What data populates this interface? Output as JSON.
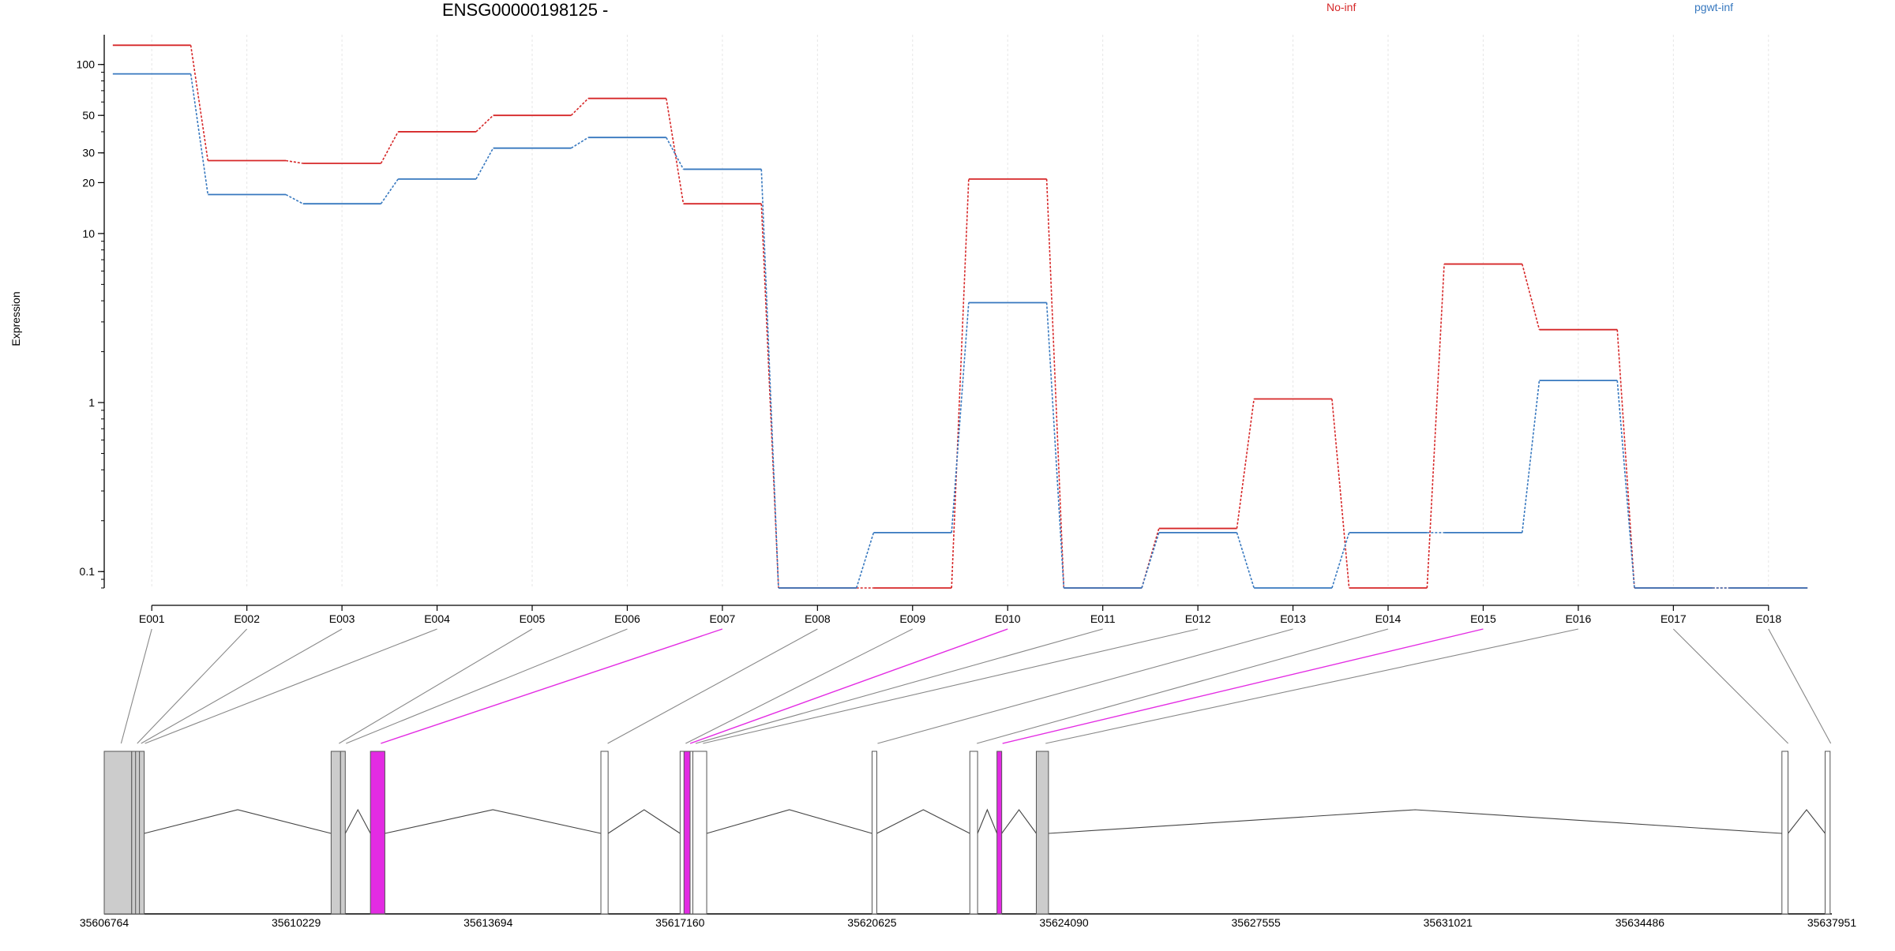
{
  "chart_data": {
    "type": "line",
    "title": "ENSG00000198125 -",
    "ylabel": "Expression",
    "yscale": "log",
    "ylim": [
      0.08,
      150
    ],
    "yticks": [
      0.1,
      1,
      10,
      20,
      30,
      50,
      100
    ],
    "ytick_labels": [
      "0.1",
      "1",
      "10",
      "20",
      "30",
      "50",
      "100"
    ],
    "categories": [
      "E001",
      "E002",
      "E003",
      "E004",
      "E005",
      "E006",
      "E007",
      "E008",
      "E009",
      "E010",
      "E011",
      "E012",
      "E013",
      "E014",
      "E015",
      "E016",
      "E017",
      "E018"
    ],
    "legend_position": "top",
    "grid": true,
    "series": [
      {
        "name": "No-inf",
        "color": "#d62728",
        "values": [
          130,
          27,
          26,
          40,
          50,
          63,
          15,
          0.08,
          0.08,
          21,
          0.08,
          0.18,
          1.05,
          0.08,
          6.6,
          2.7,
          0.08,
          0.08
        ]
      },
      {
        "name": "pgwt-inf",
        "color": "#3778bf",
        "values": [
          88,
          17,
          15,
          21,
          32,
          37,
          24,
          0.08,
          0.17,
          3.9,
          0.08,
          0.17,
          0.08,
          0.17,
          0.17,
          1.35,
          0.08,
          0.08
        ]
      }
    ],
    "highlight_color": "#e32be3",
    "highlighted_exons": [
      "E007",
      "E010",
      "E015"
    ],
    "gene_model": {
      "genomic_axis_ticks": [
        "35606764",
        "35610229",
        "35613694",
        "35617160",
        "35620625",
        "35624090",
        "35627555",
        "35631021",
        "35634486",
        "35637951"
      ],
      "genomic_range": [
        35606764,
        35637951
      ],
      "exons": [
        {
          "id": "E001",
          "start": 35606764,
          "end": 35607260,
          "fill": "#cccccc"
        },
        {
          "id": "E002",
          "start": 35607260,
          "end": 35607330,
          "fill": "#cccccc"
        },
        {
          "id": "E003",
          "start": 35607330,
          "end": 35607400,
          "fill": "#cccccc"
        },
        {
          "id": "E004",
          "start": 35607400,
          "end": 35607470,
          "fill": "#cccccc"
        },
        {
          "id": "E005",
          "start": 35610860,
          "end": 35611030,
          "fill": "#cccccc"
        },
        {
          "id": "E006",
          "start": 35611030,
          "end": 35611090,
          "fill": "#cccccc"
        },
        {
          "id": "E007",
          "start": 35611570,
          "end": 35611830,
          "fill": "#e32be3"
        },
        {
          "id": "E008",
          "start": 35615730,
          "end": 35615860,
          "fill": "#ffffff"
        },
        {
          "id": "E009",
          "start": 35617160,
          "end": 35617230,
          "fill": "#ffffff"
        },
        {
          "id": "E010",
          "start": 35617230,
          "end": 35617340,
          "fill": "#e32be3"
        },
        {
          "id": "E011",
          "start": 35617340,
          "end": 35617390,
          "fill": "#ffffff"
        },
        {
          "id": "E012",
          "start": 35617390,
          "end": 35617640,
          "fill": "#ffffff"
        },
        {
          "id": "E013",
          "start": 35620625,
          "end": 35620685,
          "fill": "#ffffff"
        },
        {
          "id": "E014",
          "start": 35622390,
          "end": 35622530,
          "fill": "#ffffff"
        },
        {
          "id": "E015",
          "start": 35622880,
          "end": 35622960,
          "fill": "#e32be3"
        },
        {
          "id": "E016",
          "start": 35623590,
          "end": 35623810,
          "fill": "#cccccc"
        },
        {
          "id": "E017",
          "start": 35637050,
          "end": 35637160,
          "fill": "#ffffff"
        },
        {
          "id": "E018",
          "start": 35637830,
          "end": 35637920,
          "fill": "#ffffff"
        }
      ]
    }
  }
}
